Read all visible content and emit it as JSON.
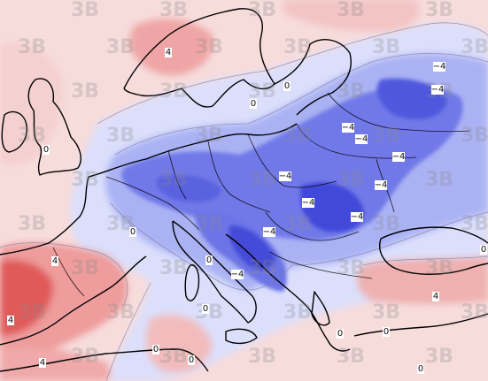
{
  "map": {
    "watermark_text": "3B",
    "colors": {
      "warm_light": "#f7d6d6",
      "warm_mid": "#ee9c9c",
      "warm_strong": "#e05a5a",
      "neutral": "#f3ecf3",
      "cool_light": "#d9dcfb",
      "cool_mid": "#a9b1f4",
      "cool_strong": "#6d75e6",
      "cool_deep": "#3f46d8",
      "coastline": "#000000"
    },
    "contour_labels": [
      {
        "id": "scandinavia-pos",
        "text": "4"
      },
      {
        "id": "russia-n-1",
        "text": "−4"
      },
      {
        "id": "russia-n-2",
        "text": "−4"
      },
      {
        "id": "baltic",
        "text": "−4"
      },
      {
        "id": "belarus",
        "text": "−4"
      },
      {
        "id": "ukraine-n",
        "text": "−4"
      },
      {
        "id": "germany",
        "text": "−4"
      },
      {
        "id": "carpathian",
        "text": "−4"
      },
      {
        "id": "hungary",
        "text": "−4"
      },
      {
        "id": "romania",
        "text": "−4"
      },
      {
        "id": "balkans-1",
        "text": "−4"
      },
      {
        "id": "italy-s",
        "text": "−4"
      },
      {
        "id": "uk-zero",
        "text": "0"
      },
      {
        "id": "norway-zero",
        "text": "0"
      },
      {
        "id": "baltic-zero",
        "text": "0"
      },
      {
        "id": "france-zero",
        "text": "0"
      },
      {
        "id": "alps-zero",
        "text": "0"
      },
      {
        "id": "sardinia-zero",
        "text": "0"
      },
      {
        "id": "greece-zero",
        "text": "0"
      },
      {
        "id": "turkey-zero",
        "text": "0"
      },
      {
        "id": "africa-zero-1",
        "text": "0"
      },
      {
        "id": "africa-zero-2",
        "text": "0"
      },
      {
        "id": "africa-zero-3",
        "text": "0"
      },
      {
        "id": "iberia-pos",
        "text": "4"
      },
      {
        "id": "iberia-w",
        "text": "4"
      },
      {
        "id": "iberia-s",
        "text": "4"
      },
      {
        "id": "turkey-pos",
        "text": "4"
      },
      {
        "id": "east-zero",
        "text": "0"
      }
    ]
  }
}
